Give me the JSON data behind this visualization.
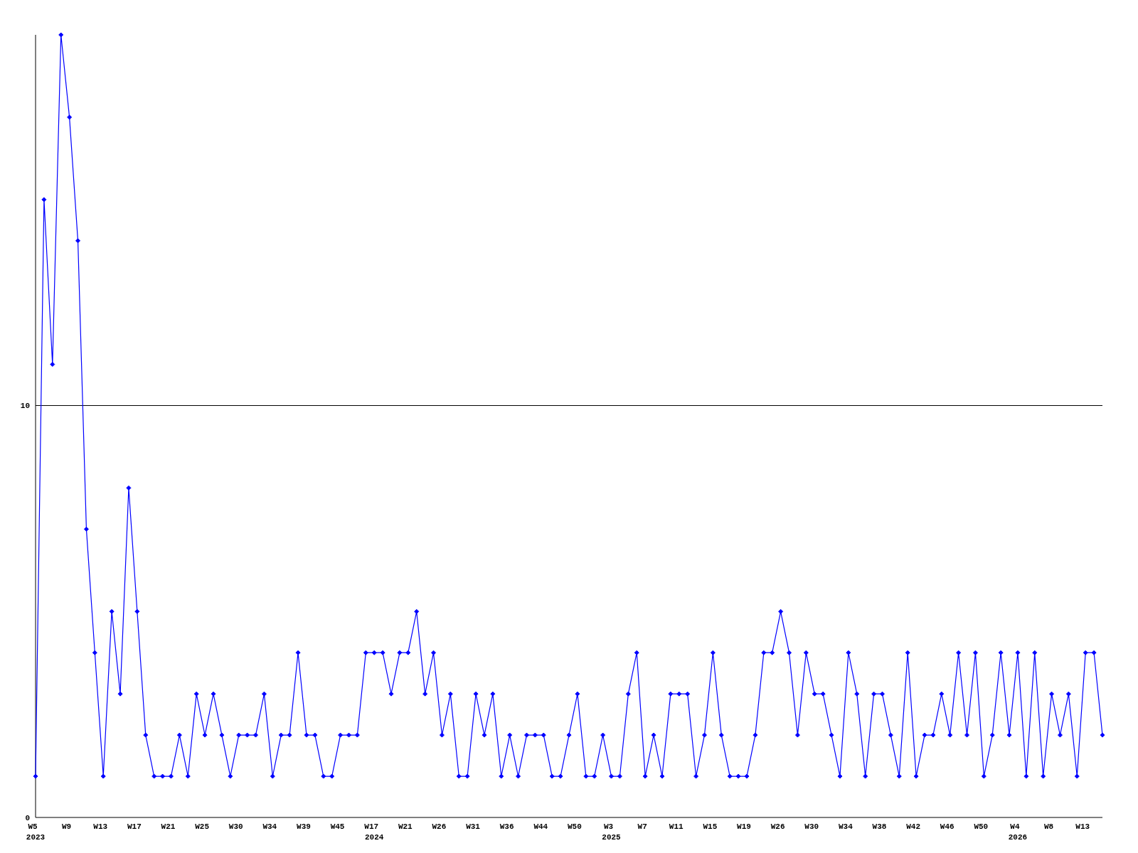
{
  "chart_data": {
    "type": "line",
    "categories": [
      "W5\n2023",
      null,
      null,
      null,
      "W9",
      null,
      null,
      null,
      "W13",
      null,
      null,
      null,
      "W17",
      null,
      null,
      null,
      "W21",
      null,
      null,
      null,
      "W25",
      null,
      null,
      null,
      "W30",
      null,
      null,
      null,
      "W34",
      null,
      null,
      null,
      "W39",
      null,
      null,
      null,
      "W45",
      null,
      null,
      null,
      "W17\n2024",
      null,
      null,
      null,
      "W21",
      null,
      null,
      null,
      "W26",
      null,
      null,
      null,
      "W31",
      null,
      null,
      null,
      "W36",
      null,
      null,
      null,
      "W44",
      null,
      null,
      null,
      "W50",
      null,
      null,
      null,
      "W3\n2025",
      null,
      null,
      null,
      "W7",
      null,
      null,
      null,
      "W11",
      null,
      null,
      null,
      "W15",
      null,
      null,
      null,
      "W19",
      null,
      null,
      null,
      "W26",
      null,
      null,
      null,
      "W30",
      null,
      null,
      null,
      "W34",
      null,
      null,
      null,
      "W38",
      null,
      null,
      null,
      "W42",
      null,
      null,
      null,
      "W46",
      null,
      null,
      null,
      "W50",
      null,
      null,
      null,
      "W4\n2026",
      null,
      null,
      null,
      "W8",
      null,
      null,
      null,
      "W13",
      null,
      null
    ],
    "series": [
      {
        "color": "#0000ff",
        "values": [
          1,
          15,
          11,
          19,
          17,
          14,
          7,
          4,
          1,
          5,
          3,
          8,
          5,
          2,
          1,
          1,
          1,
          2,
          1,
          3,
          2,
          3,
          2,
          1,
          2,
          2,
          2,
          3,
          1,
          2,
          2,
          4,
          2,
          2,
          1,
          1,
          2,
          2,
          2,
          4,
          4,
          4,
          3,
          4,
          4,
          5,
          3,
          4,
          2,
          3,
          1,
          1,
          3,
          2,
          3,
          1,
          2,
          1,
          2,
          2,
          2,
          1,
          1,
          2,
          3,
          1,
          1,
          2,
          1,
          1,
          3,
          4,
          1,
          2,
          1,
          3,
          3,
          3,
          1,
          2,
          4,
          2,
          1,
          1,
          1,
          2,
          4,
          4,
          5,
          4,
          2,
          4,
          3,
          3,
          2,
          1,
          4,
          3,
          1,
          3,
          3,
          2,
          1,
          4,
          1,
          2,
          2,
          3,
          2,
          4,
          2,
          4,
          1,
          2,
          4,
          2,
          4,
          1,
          4,
          1,
          3,
          2,
          3,
          1,
          4,
          4,
          2
        ]
      }
    ],
    "ylim": [
      0,
      19
    ],
    "yticks": [
      0,
      10
    ],
    "grid": "y",
    "marker": "diamond"
  }
}
